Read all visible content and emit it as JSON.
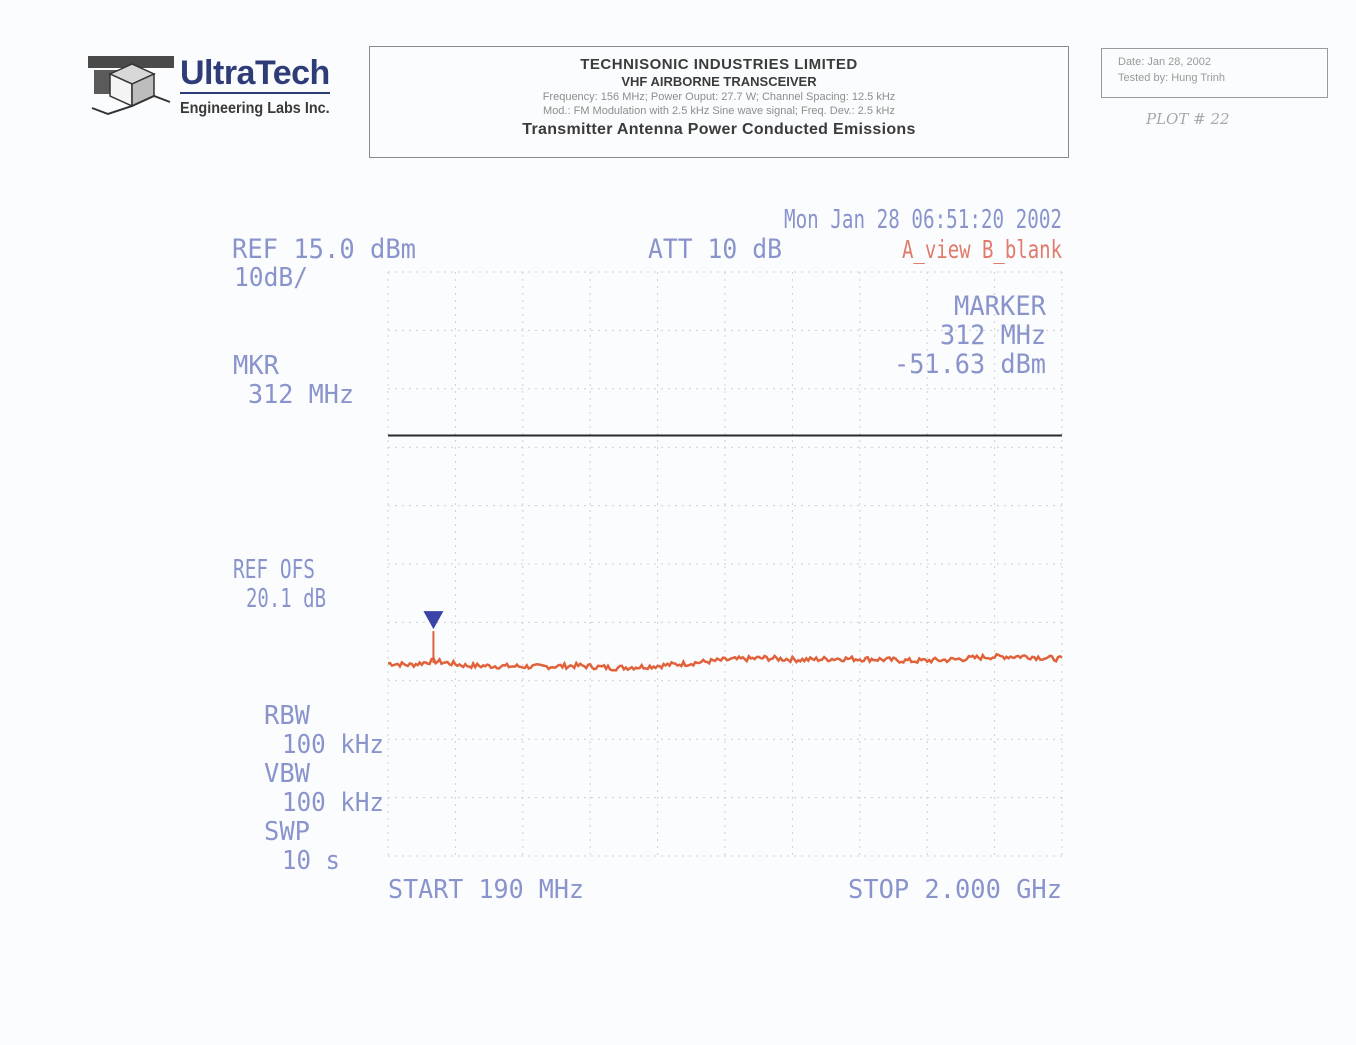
{
  "header": {
    "brand_name": "UltraTech",
    "brand_sub": "Engineering Labs Inc.",
    "company": "TECHNISONIC INDUSTRIES LIMITED",
    "product": "VHF AIRBORNE TRANSCEIVER",
    "params_line": "Frequency: 156 MHz; Power Ouput: 27.7 W; Channel Spacing: 12.5 kHz",
    "mod_line": "Mod.: FM Modulation with 2.5 kHz Sine wave signal; Freq. Dev.: 2.5 kHz",
    "test_title": "Transmitter Antenna Power Conducted Emissions",
    "date_line": "Date: Jan 28, 2002",
    "tested_by": "Tested by: Hung Trinh",
    "plot_note": "PLOT # 22"
  },
  "analyzer": {
    "timestamp": "Mon Jan 28 06:51:20 2002",
    "ref_level": "REF 15.0 dBm",
    "scale": "10dB/",
    "att": "ATT 10 dB",
    "trace_mode": "A_view B_blank",
    "mkr_label": "MKR",
    "mkr_freq": "312 MHz",
    "marker_title": "MARKER",
    "marker_freq": "312 MHz",
    "marker_level": "-51.63 dBm",
    "ref_ofs_label": "REF OFS",
    "ref_ofs_value": "20.1 dB",
    "rbw_label": "RBW",
    "rbw_value": "100 kHz",
    "vbw_label": "VBW",
    "vbw_value": "100 kHz",
    "swp_label": "SWP",
    "swp_value": "10 s",
    "start": "START 190 MHz",
    "stop": "STOP 2.000 GHz"
  },
  "chart_data": {
    "type": "line",
    "title": "",
    "xlabel": "",
    "ylabel": "",
    "xlim": [
      190,
      2000
    ],
    "ylim": [
      -85,
      15
    ],
    "x_unit": "MHz",
    "y_unit": "dBm",
    "grid": true,
    "limit_line": {
      "y": -13
    },
    "marker": {
      "x": 312,
      "y": -51.63
    },
    "series": [
      {
        "color": "#e0623a",
        "x": [
          190,
          250,
          312,
          400,
          500,
          600,
          700,
          800,
          900,
          1000,
          1100,
          1200,
          1300,
          1400,
          1500,
          1600,
          1700,
          1800,
          1900,
          2000
        ],
        "y": [
          -52.0,
          -52.3,
          -51.6,
          -52.4,
          -52.5,
          -52.6,
          -52.4,
          -52.8,
          -52.5,
          -52.0,
          -51.4,
          -51.1,
          -51.4,
          -51.2,
          -51.3,
          -51.6,
          -51.4,
          -50.9,
          -50.8,
          -51.3
        ]
      }
    ]
  },
  "colors": {
    "text_blue": "#8a94cc",
    "text_red": "#e07a6a",
    "grid": "#c8c8c8",
    "limit": "#2a2a2a",
    "trace": "#e0623a",
    "marker": "#3a44a8"
  }
}
